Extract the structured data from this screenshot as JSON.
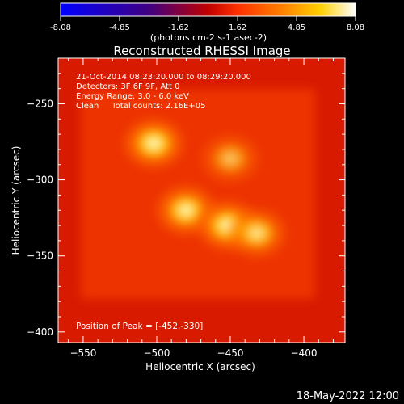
{
  "chart_data": {
    "type": "heatmap",
    "title": "Reconstructed RHESSI Image",
    "xlabel": "Heliocentric X (arcsec)",
    "ylabel": "Heliocentric Y (arcsec)",
    "xlim": [
      -567,
      -372
    ],
    "ylim": [
      -407,
      -220
    ],
    "x_ticks": [
      -550,
      -500,
      -450,
      -400
    ],
    "y_ticks": [
      -250,
      -300,
      -350,
      -400
    ],
    "colorbar": {
      "ticks": [
        "-8.08",
        "-4.85",
        "-1.62",
        "1.62",
        "4.85",
        "8.08"
      ],
      "range": [
        -8.08,
        8.08
      ],
      "colormap": "blue-purple-red-orange-yellow-white",
      "label": "(photons cm-2 s-1 asec-2)"
    },
    "info": [
      "21-Oct-2014 08:23:20.000 to 08:29:20.000",
      "Detectors: 3F 6F 9F, Att 0",
      "Energy Range: 3.0 - 6.0 keV",
      "Clean     Total counts: 2.16E+05"
    ],
    "peak_label": "Position of Peak = [-452,-330]",
    "peak_position": [
      -452,
      -330
    ],
    "sources": [
      {
        "x": -502,
        "y": -276,
        "intensity": 1.0
      },
      {
        "x": -450,
        "y": -286,
        "intensity": 0.55
      },
      {
        "x": -480,
        "y": -320,
        "intensity": 0.95
      },
      {
        "x": -452,
        "y": -330,
        "intensity": 1.0
      },
      {
        "x": -432,
        "y": -335,
        "intensity": 0.8
      }
    ],
    "background_level": 0.35,
    "grid": false
  },
  "footer": {
    "timestamp": "18-May-2022 12:00"
  },
  "colors": {
    "background": "#000000",
    "foreground": "#ffffff",
    "field_base": "#e01a00"
  }
}
